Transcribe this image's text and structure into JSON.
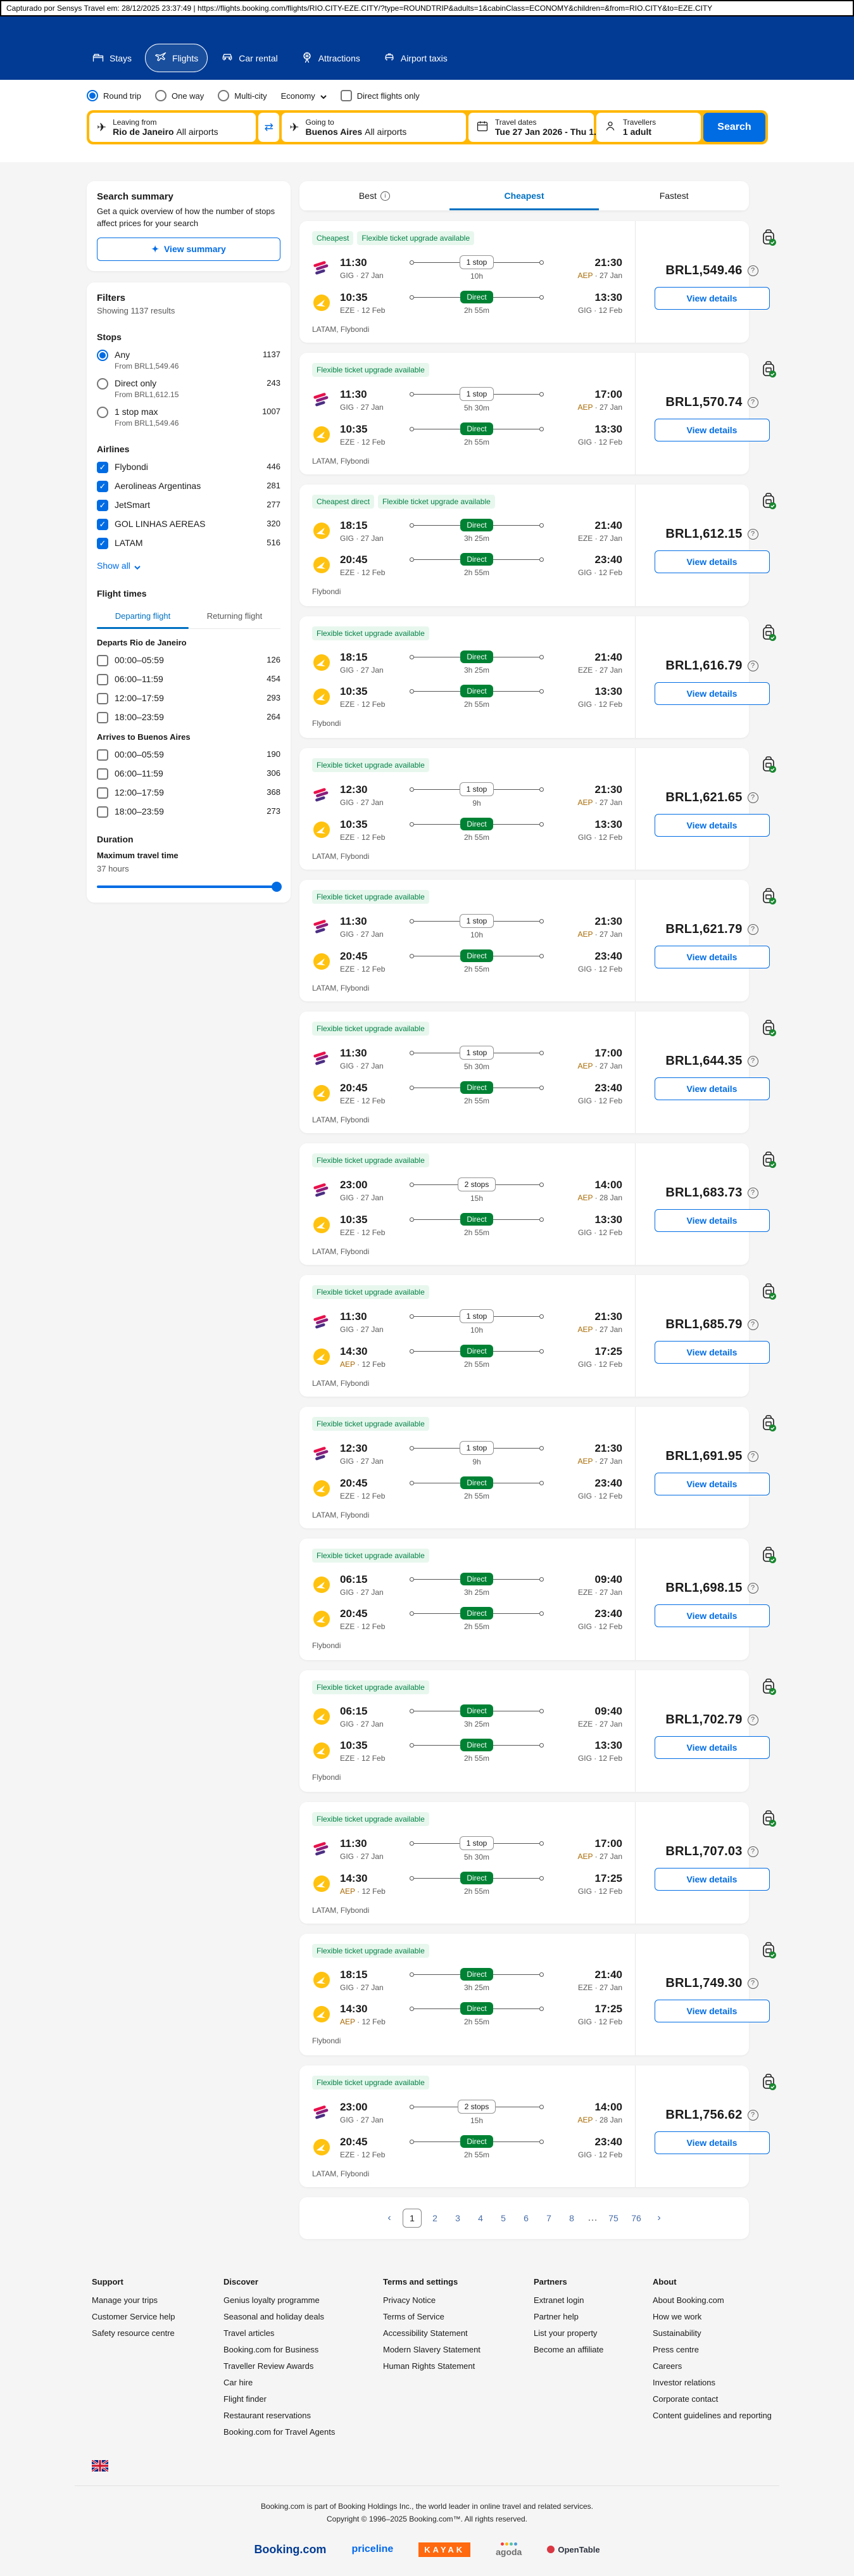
{
  "capture_bar": {
    "text": "Capturado por Sensys Travel em: 28/12/2025 23:37:49  |  https://flights.booking.com/flights/RIO.CITY-EZE.CITY/?type=ROUNDTRIP&adults=1&cabinClass=ECONOMY&children=&from=RIO.CITY&to=EZE.CITY"
  },
  "nav": {
    "items": [
      {
        "label": "Stays",
        "icon": "bed-icon",
        "active": false
      },
      {
        "label": "Flights",
        "icon": "plane-icon",
        "active": true
      },
      {
        "label": "Car rental",
        "icon": "car-icon",
        "active": false
      },
      {
        "label": "Attractions",
        "icon": "ferris-wheel-icon",
        "active": false
      },
      {
        "label": "Airport taxis",
        "icon": "taxi-icon",
        "active": false
      }
    ]
  },
  "search_form": {
    "trip_types": [
      {
        "label": "Round trip",
        "selected": true
      },
      {
        "label": "One way",
        "selected": false
      },
      {
        "label": "Multi-city",
        "selected": false
      }
    ],
    "cabin_class": "Economy",
    "direct_only_label": "Direct flights only",
    "from": {
      "label": "Leaving from",
      "city": "Rio de Janeiro",
      "detail": "All airports"
    },
    "to": {
      "label": "Going to",
      "city": "Buenos Aires",
      "detail": "All airports"
    },
    "dates": {
      "label": "Travel dates",
      "value": "Tue 27 Jan 2026 - Thu 1..."
    },
    "travellers": {
      "label": "Travellers",
      "value": "1 adult"
    },
    "search_label": "Search"
  },
  "sidebar": {
    "summary_card": {
      "title": "Search summary",
      "body": "Get a quick overview of how the number of stops affect prices for your search",
      "button_label": "View summary"
    },
    "filters_title": "Filters",
    "results_count": "Showing 1137 results",
    "stops": {
      "title": "Stops",
      "options": [
        {
          "label": "Any",
          "count": "1137",
          "sub": "From BRL1,549.46",
          "selected": true
        },
        {
          "label": "Direct only",
          "count": "243",
          "sub": "From BRL1,612.15",
          "selected": false
        },
        {
          "label": "1 stop max",
          "count": "1007",
          "sub": "From BRL1,549.46",
          "selected": false
        }
      ]
    },
    "airlines": {
      "title": "Airlines",
      "show_all_label": "Show all",
      "options": [
        {
          "label": "Flybondi",
          "count": "446",
          "checked": true
        },
        {
          "label": "Aerolineas Argentinas",
          "count": "281",
          "checked": true
        },
        {
          "label": "JetSmart",
          "count": "277",
          "checked": true
        },
        {
          "label": "GOL LINHAS AEREAS",
          "count": "320",
          "checked": true
        },
        {
          "label": "LATAM",
          "count": "516",
          "checked": true
        }
      ]
    },
    "flight_times": {
      "title": "Flight times",
      "tabs": [
        "Departing flight",
        "Returning flight"
      ],
      "active_tab": 0,
      "groups": [
        {
          "title": "Departs Rio de Janeiro",
          "options": [
            {
              "label": "00:00–05:59",
              "count": "126",
              "checked": false
            },
            {
              "label": "06:00–11:59",
              "count": "454",
              "checked": false
            },
            {
              "label": "12:00–17:59",
              "count": "293",
              "checked": false
            },
            {
              "label": "18:00–23:59",
              "count": "264",
              "checked": false
            }
          ]
        },
        {
          "title": "Arrives to Buenos Aires",
          "options": [
            {
              "label": "00:00–05:59",
              "count": "190",
              "checked": false
            },
            {
              "label": "06:00–11:59",
              "count": "306",
              "checked": false
            },
            {
              "label": "12:00–17:59",
              "count": "368",
              "checked": false
            },
            {
              "label": "18:00–23:59",
              "count": "273",
              "checked": false
            }
          ]
        }
      ]
    },
    "duration": {
      "title": "Duration",
      "label": "Maximum travel time",
      "value": "37 hours"
    }
  },
  "results": {
    "tabs": [
      {
        "label": "Best",
        "info_icon": true,
        "active": false
      },
      {
        "label": "Cheapest",
        "info_icon": false,
        "active": true
      },
      {
        "label": "Fastest",
        "info_icon": false,
        "active": false
      }
    ],
    "view_details_label": "View details",
    "flights": [
      {
        "badges": [
          "Cheapest",
          "Flexible ticket upgrade available"
        ],
        "legs": [
          {
            "airline": "latam",
            "dep_time": "11:30",
            "dep_code": "GIG",
            "dep_date": "27 Jan",
            "stop": "1 stop",
            "duration": "10h",
            "arr_time": "21:30",
            "arr_code": "AEP",
            "arr_date": "27 Jan"
          },
          {
            "airline": "flybondi",
            "dep_time": "10:35",
            "dep_code": "EZE",
            "dep_date": "12 Feb",
            "stop": "Direct",
            "duration": "2h 55m",
            "arr_time": "13:30",
            "arr_code": "GIG",
            "arr_date": "12 Feb"
          }
        ],
        "airlines_text": "LATAM, Flybondi",
        "price": "BRL1,549.46"
      },
      {
        "badges": [
          "Flexible ticket upgrade available"
        ],
        "legs": [
          {
            "airline": "latam",
            "dep_time": "11:30",
            "dep_code": "GIG",
            "dep_date": "27 Jan",
            "stop": "1 stop",
            "duration": "5h 30m",
            "arr_time": "17:00",
            "arr_code": "AEP",
            "arr_date": "27 Jan"
          },
          {
            "airline": "flybondi",
            "dep_time": "10:35",
            "dep_code": "EZE",
            "dep_date": "12 Feb",
            "stop": "Direct",
            "duration": "2h 55m",
            "arr_time": "13:30",
            "arr_code": "GIG",
            "arr_date": "12 Feb"
          }
        ],
        "airlines_text": "LATAM, Flybondi",
        "price": "BRL1,570.74"
      },
      {
        "badges": [
          "Cheapest direct",
          "Flexible ticket upgrade available"
        ],
        "legs": [
          {
            "airline": "flybondi",
            "dep_time": "18:15",
            "dep_code": "GIG",
            "dep_date": "27 Jan",
            "stop": "Direct",
            "duration": "3h 25m",
            "arr_time": "21:40",
            "arr_code": "EZE",
            "arr_date": "27 Jan"
          },
          {
            "airline": "flybondi",
            "dep_time": "20:45",
            "dep_code": "EZE",
            "dep_date": "12 Feb",
            "stop": "Direct",
            "duration": "2h 55m",
            "arr_time": "23:40",
            "arr_code": "GIG",
            "arr_date": "12 Feb"
          }
        ],
        "airlines_text": "Flybondi",
        "price": "BRL1,612.15"
      },
      {
        "badges": [
          "Flexible ticket upgrade available"
        ],
        "legs": [
          {
            "airline": "flybondi",
            "dep_time": "18:15",
            "dep_code": "GIG",
            "dep_date": "27 Jan",
            "stop": "Direct",
            "duration": "3h 25m",
            "arr_time": "21:40",
            "arr_code": "EZE",
            "arr_date": "27 Jan"
          },
          {
            "airline": "flybondi",
            "dep_time": "10:35",
            "dep_code": "EZE",
            "dep_date": "12 Feb",
            "stop": "Direct",
            "duration": "2h 55m",
            "arr_time": "13:30",
            "arr_code": "GIG",
            "arr_date": "12 Feb"
          }
        ],
        "airlines_text": "Flybondi",
        "price": "BRL1,616.79"
      },
      {
        "badges": [
          "Flexible ticket upgrade available"
        ],
        "legs": [
          {
            "airline": "latam",
            "dep_time": "12:30",
            "dep_code": "GIG",
            "dep_date": "27 Jan",
            "stop": "1 stop",
            "duration": "9h",
            "arr_time": "21:30",
            "arr_code": "AEP",
            "arr_date": "27 Jan"
          },
          {
            "airline": "flybondi",
            "dep_time": "10:35",
            "dep_code": "EZE",
            "dep_date": "12 Feb",
            "stop": "Direct",
            "duration": "2h 55m",
            "arr_time": "13:30",
            "arr_code": "GIG",
            "arr_date": "12 Feb"
          }
        ],
        "airlines_text": "LATAM, Flybondi",
        "price": "BRL1,621.65"
      },
      {
        "badges": [
          "Flexible ticket upgrade available"
        ],
        "legs": [
          {
            "airline": "latam",
            "dep_time": "11:30",
            "dep_code": "GIG",
            "dep_date": "27 Jan",
            "stop": "1 stop",
            "duration": "10h",
            "arr_time": "21:30",
            "arr_code": "AEP",
            "arr_date": "27 Jan"
          },
          {
            "airline": "flybondi",
            "dep_time": "20:45",
            "dep_code": "EZE",
            "dep_date": "12 Feb",
            "stop": "Direct",
            "duration": "2h 55m",
            "arr_time": "23:40",
            "arr_code": "GIG",
            "arr_date": "12 Feb"
          }
        ],
        "airlines_text": "LATAM, Flybondi",
        "price": "BRL1,621.79"
      },
      {
        "badges": [
          "Flexible ticket upgrade available"
        ],
        "legs": [
          {
            "airline": "latam",
            "dep_time": "11:30",
            "dep_code": "GIG",
            "dep_date": "27 Jan",
            "stop": "1 stop",
            "duration": "5h 30m",
            "arr_time": "17:00",
            "arr_code": "AEP",
            "arr_date": "27 Jan"
          },
          {
            "airline": "flybondi",
            "dep_time": "20:45",
            "dep_code": "EZE",
            "dep_date": "12 Feb",
            "stop": "Direct",
            "duration": "2h 55m",
            "arr_time": "23:40",
            "arr_code": "GIG",
            "arr_date": "12 Feb"
          }
        ],
        "airlines_text": "LATAM, Flybondi",
        "price": "BRL1,644.35"
      },
      {
        "badges": [
          "Flexible ticket upgrade available"
        ],
        "legs": [
          {
            "airline": "latam",
            "dep_time": "23:00",
            "dep_code": "GIG",
            "dep_date": "27 Jan",
            "stop": "2 stops",
            "duration": "15h",
            "arr_time": "14:00",
            "arr_code": "AEP",
            "arr_date": "28 Jan"
          },
          {
            "airline": "flybondi",
            "dep_time": "10:35",
            "dep_code": "EZE",
            "dep_date": "12 Feb",
            "stop": "Direct",
            "duration": "2h 55m",
            "arr_time": "13:30",
            "arr_code": "GIG",
            "arr_date": "12 Feb"
          }
        ],
        "airlines_text": "LATAM, Flybondi",
        "price": "BRL1,683.73"
      },
      {
        "badges": [
          "Flexible ticket upgrade available"
        ],
        "legs": [
          {
            "airline": "latam",
            "dep_time": "11:30",
            "dep_code": "GIG",
            "dep_date": "27 Jan",
            "stop": "1 stop",
            "duration": "10h",
            "arr_time": "21:30",
            "arr_code": "AEP",
            "arr_date": "27 Jan"
          },
          {
            "airline": "flybondi",
            "dep_time": "14:30",
            "dep_code": "AEP",
            "dep_date": "12 Feb",
            "stop": "Direct",
            "duration": "2h 55m",
            "arr_time": "17:25",
            "arr_code": "GIG",
            "arr_date": "12 Feb"
          }
        ],
        "airlines_text": "LATAM, Flybondi",
        "price": "BRL1,685.79"
      },
      {
        "badges": [
          "Flexible ticket upgrade available"
        ],
        "legs": [
          {
            "airline": "latam",
            "dep_time": "12:30",
            "dep_code": "GIG",
            "dep_date": "27 Jan",
            "stop": "1 stop",
            "duration": "9h",
            "arr_time": "21:30",
            "arr_code": "AEP",
            "arr_date": "27 Jan"
          },
          {
            "airline": "flybondi",
            "dep_time": "20:45",
            "dep_code": "EZE",
            "dep_date": "12 Feb",
            "stop": "Direct",
            "duration": "2h 55m",
            "arr_time": "23:40",
            "arr_code": "GIG",
            "arr_date": "12 Feb"
          }
        ],
        "airlines_text": "LATAM, Flybondi",
        "price": "BRL1,691.95"
      },
      {
        "badges": [
          "Flexible ticket upgrade available"
        ],
        "legs": [
          {
            "airline": "flybondi",
            "dep_time": "06:15",
            "dep_code": "GIG",
            "dep_date": "27 Jan",
            "stop": "Direct",
            "duration": "3h 25m",
            "arr_time": "09:40",
            "arr_code": "EZE",
            "arr_date": "27 Jan"
          },
          {
            "airline": "flybondi",
            "dep_time": "20:45",
            "dep_code": "EZE",
            "dep_date": "12 Feb",
            "stop": "Direct",
            "duration": "2h 55m",
            "arr_time": "23:40",
            "arr_code": "GIG",
            "arr_date": "12 Feb"
          }
        ],
        "airlines_text": "Flybondi",
        "price": "BRL1,698.15"
      },
      {
        "badges": [
          "Flexible ticket upgrade available"
        ],
        "legs": [
          {
            "airline": "flybondi",
            "dep_time": "06:15",
            "dep_code": "GIG",
            "dep_date": "27 Jan",
            "stop": "Direct",
            "duration": "3h 25m",
            "arr_time": "09:40",
            "arr_code": "EZE",
            "arr_date": "27 Jan"
          },
          {
            "airline": "flybondi",
            "dep_time": "10:35",
            "dep_code": "EZE",
            "dep_date": "12 Feb",
            "stop": "Direct",
            "duration": "2h 55m",
            "arr_time": "13:30",
            "arr_code": "GIG",
            "arr_date": "12 Feb"
          }
        ],
        "airlines_text": "Flybondi",
        "price": "BRL1,702.79"
      },
      {
        "badges": [
          "Flexible ticket upgrade available"
        ],
        "legs": [
          {
            "airline": "latam",
            "dep_time": "11:30",
            "dep_code": "GIG",
            "dep_date": "27 Jan",
            "stop": "1 stop",
            "duration": "5h 30m",
            "arr_time": "17:00",
            "arr_code": "AEP",
            "arr_date": "27 Jan"
          },
          {
            "airline": "flybondi",
            "dep_time": "14:30",
            "dep_code": "AEP",
            "dep_date": "12 Feb",
            "stop": "Direct",
            "duration": "2h 55m",
            "arr_time": "17:25",
            "arr_code": "GIG",
            "arr_date": "12 Feb"
          }
        ],
        "airlines_text": "LATAM, Flybondi",
        "price": "BRL1,707.03"
      },
      {
        "badges": [
          "Flexible ticket upgrade available"
        ],
        "legs": [
          {
            "airline": "flybondi",
            "dep_time": "18:15",
            "dep_code": "GIG",
            "dep_date": "27 Jan",
            "stop": "Direct",
            "duration": "3h 25m",
            "arr_time": "21:40",
            "arr_code": "EZE",
            "arr_date": "27 Jan"
          },
          {
            "airline": "flybondi",
            "dep_time": "14:30",
            "dep_code": "AEP",
            "dep_date": "12 Feb",
            "stop": "Direct",
            "duration": "2h 55m",
            "arr_time": "17:25",
            "arr_code": "GIG",
            "arr_date": "12 Feb"
          }
        ],
        "airlines_text": "Flybondi",
        "price": "BRL1,749.30"
      },
      {
        "badges": [
          "Flexible ticket upgrade available"
        ],
        "legs": [
          {
            "airline": "latam",
            "dep_time": "23:00",
            "dep_code": "GIG",
            "dep_date": "27 Jan",
            "stop": "2 stops",
            "duration": "15h",
            "arr_time": "14:00",
            "arr_code": "AEP",
            "arr_date": "28 Jan"
          },
          {
            "airline": "flybondi",
            "dep_time": "20:45",
            "dep_code": "EZE",
            "dep_date": "12 Feb",
            "stop": "Direct",
            "duration": "2h 55m",
            "arr_time": "23:40",
            "arr_code": "GIG",
            "arr_date": "12 Feb"
          }
        ],
        "airlines_text": "LATAM, Flybondi",
        "price": "BRL1,756.62"
      }
    ],
    "pagination": {
      "prev": "‹",
      "next": "›",
      "pages": [
        "1",
        "2",
        "3",
        "4",
        "5",
        "6",
        "7",
        "8",
        "…",
        "75",
        "76"
      ],
      "current": "1"
    }
  },
  "footer": {
    "columns": [
      {
        "title": "Support",
        "links": [
          "Manage your trips",
          "Customer Service help",
          "Safety resource centre"
        ]
      },
      {
        "title": "Discover",
        "links": [
          "Genius loyalty programme",
          "Seasonal and holiday deals",
          "Travel articles",
          "Booking.com for Business",
          "Traveller Review Awards",
          "Car hire",
          "Flight finder",
          "Restaurant reservations",
          "Booking.com for Travel Agents"
        ]
      },
      {
        "title": "Terms and settings",
        "links": [
          "Privacy Notice",
          "Terms of Service",
          "Accessibility Statement",
          "Modern Slavery Statement",
          "Human Rights Statement"
        ]
      },
      {
        "title": "Partners",
        "links": [
          "Extranet login",
          "Partner help",
          "List your property",
          "Become an affiliate"
        ]
      },
      {
        "title": "About",
        "links": [
          "About Booking.com",
          "How we work",
          "Sustainability",
          "Press centre",
          "Careers",
          "Investor relations",
          "Corporate contact",
          "Content guidelines and reporting"
        ]
      }
    ],
    "legal_line1": "Booking.com is part of Booking Holdings Inc., the world leader in online travel and related services.",
    "legal_line2": "Copyright © 1996–2025 Booking.com™. All rights reserved.",
    "brands": [
      "Booking.com",
      "priceline",
      "KAYAK",
      "agoda",
      "OpenTable"
    ]
  },
  "colors": {
    "header_blue": "#013b94",
    "accent_blue": "#006ce4",
    "search_yellow": "#ffb700",
    "direct_green": "#008234",
    "badge_green_bg": "#e8f7ee",
    "page_bg": "#f5f5f5",
    "highlight_code": "#a86800"
  }
}
